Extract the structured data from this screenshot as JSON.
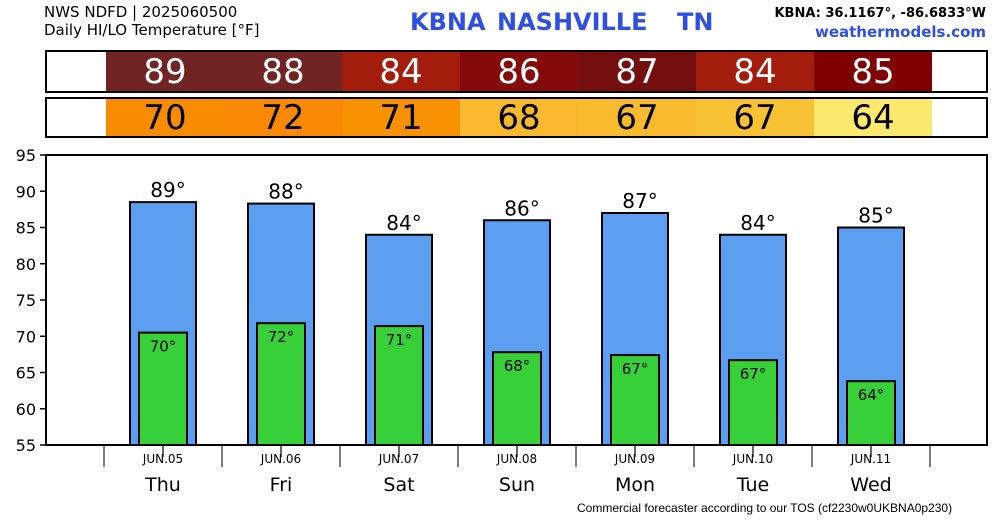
{
  "header": {
    "product": "NWS NDFD | 2025060500",
    "subtitle": "Daily HI/LO Temperature [°F]",
    "station_id": "KBNA",
    "city": "NASHVILLE",
    "state": "TN",
    "coords": "KBNA: 36.1167°, -86.6833°W",
    "site": "weathermodels.com"
  },
  "strips": {
    "hi": [
      {
        "value": "89",
        "color": "#722424"
      },
      {
        "value": "88",
        "color": "#722424"
      },
      {
        "value": "84",
        "color": "#a31c0c"
      },
      {
        "value": "86",
        "color": "#850a0a"
      },
      {
        "value": "87",
        "color": "#750f0f"
      },
      {
        "value": "84",
        "color": "#a31c0c"
      },
      {
        "value": "85",
        "color": "#7f0000"
      }
    ],
    "lo": [
      {
        "value": "70",
        "color": "#f78c00"
      },
      {
        "value": "72",
        "color": "#fa8a05"
      },
      {
        "value": "71",
        "color": "#f79100"
      },
      {
        "value": "68",
        "color": "#f9b92e"
      },
      {
        "value": "67",
        "color": "#f9bb2e"
      },
      {
        "value": "67",
        "color": "#f9c234"
      },
      {
        "value": "64",
        "color": "#fde96e"
      }
    ]
  },
  "chart_data": {
    "type": "bar",
    "categories": [
      "Thu",
      "Fri",
      "Sat",
      "Sun",
      "Mon",
      "Tue",
      "Wed"
    ],
    "dates": [
      "JUN.05",
      "JUN.06",
      "JUN.07",
      "JUN.08",
      "JUN.09",
      "JUN.10",
      "JUN.11"
    ],
    "series": [
      {
        "name": "HI",
        "values": [
          88.5,
          88.3,
          84,
          86,
          87,
          84,
          85
        ],
        "labels": [
          "89°",
          "88°",
          "84°",
          "86°",
          "87°",
          "84°",
          "85°"
        ],
        "color": "#5c9ef0"
      },
      {
        "name": "LO",
        "values": [
          70.5,
          71.8,
          71.4,
          67.8,
          67.4,
          66.7,
          63.8
        ],
        "labels": [
          "70°",
          "72°",
          "71°",
          "68°",
          "67°",
          "67°",
          "64°"
        ],
        "color": "#38d038"
      }
    ],
    "ylim": [
      55,
      95
    ],
    "yticks": [
      55,
      60,
      65,
      70,
      75,
      80,
      85,
      90,
      95
    ],
    "grid": false
  },
  "footer": "Commercial forecaster according to our TOS (cf2230w0UKBNA0p230)"
}
